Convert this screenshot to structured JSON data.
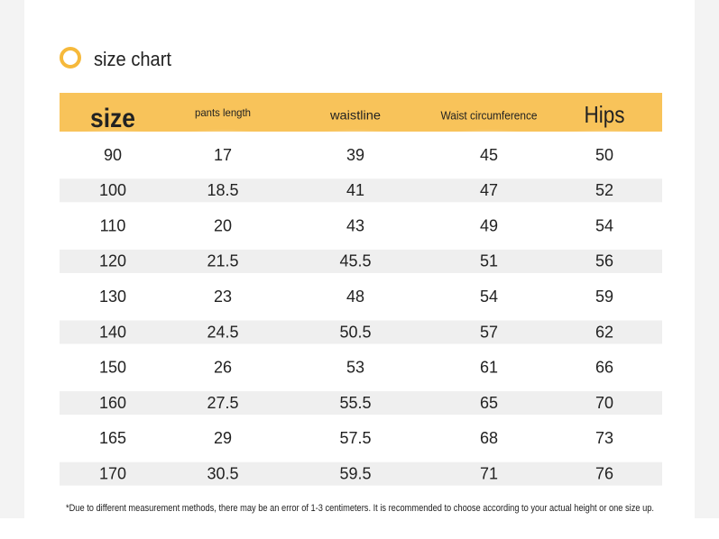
{
  "header": {
    "title": "size chart"
  },
  "table": {
    "columns": [
      "size",
      "pants length",
      "waistline",
      "Waist circumference",
      "Hips"
    ],
    "rows": [
      [
        90,
        17,
        39,
        45,
        50
      ],
      [
        100,
        18.5,
        41,
        47,
        52
      ],
      [
        110,
        20,
        43,
        49,
        54
      ],
      [
        120,
        21.5,
        45.5,
        51,
        56
      ],
      [
        130,
        23,
        48,
        54,
        59
      ],
      [
        140,
        24.5,
        50.5,
        57,
        62
      ],
      [
        150,
        26,
        53,
        61,
        66
      ],
      [
        160,
        27.5,
        55.5,
        65,
        70
      ],
      [
        165,
        29,
        57.5,
        68,
        73
      ],
      [
        170,
        30.5,
        59.5,
        71,
        76
      ]
    ]
  },
  "footnote": "*Due to different measurement methods, there may be an error of 1-3 centimeters. It is recommended to choose according to your actual height or one size up."
}
